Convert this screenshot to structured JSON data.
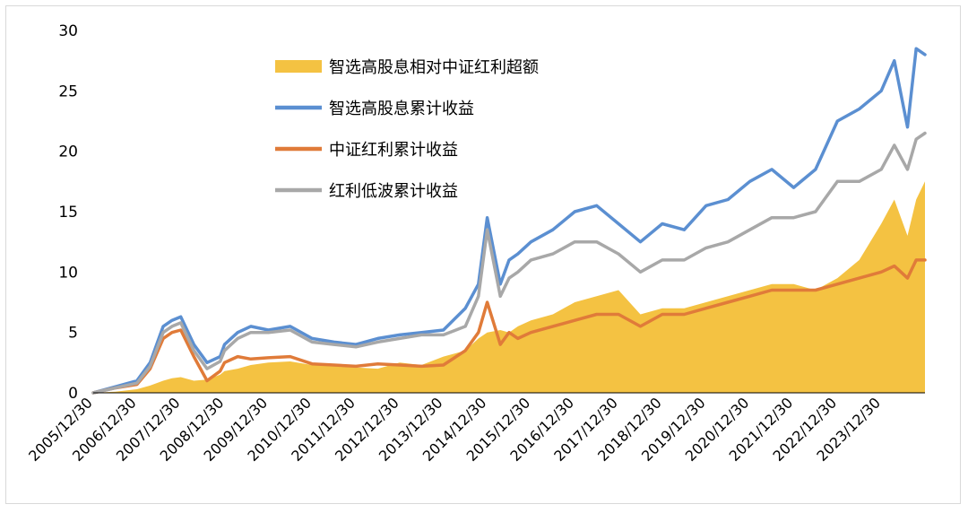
{
  "chart_data": {
    "type": "area",
    "title": "",
    "xlabel": "",
    "ylabel": "",
    "ylim": [
      0,
      30
    ],
    "yticks": [
      0,
      5,
      10,
      15,
      20,
      25,
      30
    ],
    "grid": false,
    "legend_position": "top-left",
    "x": [
      2006.0,
      2006.5,
      2007.0,
      2007.3,
      2007.6,
      2007.8,
      2008.0,
      2008.3,
      2008.6,
      2008.9,
      2009.0,
      2009.3,
      2009.6,
      2010.0,
      2010.5,
      2011.0,
      2011.5,
      2012.0,
      2012.5,
      2013.0,
      2013.5,
      2014.0,
      2014.5,
      2014.8,
      2015.0,
      2015.3,
      2015.5,
      2015.7,
      2016.0,
      2016.5,
      2017.0,
      2017.5,
      2018.0,
      2018.5,
      2019.0,
      2019.5,
      2020.0,
      2020.5,
      2021.0,
      2021.5,
      2022.0,
      2022.5,
      2023.0,
      2023.5,
      2024.0,
      2024.3,
      2024.6,
      2024.8,
      2025.0
    ],
    "xtick_labels": [
      "2005/12/30",
      "2006/12/30",
      "2007/12/30",
      "2008/12/30",
      "2009/12/30",
      "2010/12/30",
      "2011/12/30",
      "2012/12/30",
      "2013/12/30",
      "2014/12/30",
      "2015/12/30",
      "2016/12/30",
      "2017/12/30",
      "2018/12/30",
      "2019/12/30",
      "2020/12/30",
      "2021/12/30",
      "2022/12/30",
      "2023/12/30"
    ],
    "xtick_values": [
      2006,
      2007,
      2008,
      2009,
      2010,
      2011,
      2012,
      2013,
      2014,
      2015,
      2016,
      2017,
      2018,
      2019,
      2020,
      2021,
      2022,
      2023,
      2024
    ],
    "series": [
      {
        "name": "智选高股息相对中证红利超额",
        "kind": "area",
        "color": "#F4C242",
        "values": [
          0.0,
          0.1,
          0.3,
          0.6,
          1.0,
          1.2,
          1.3,
          1.0,
          1.1,
          1.5,
          1.8,
          2.0,
          2.3,
          2.5,
          2.6,
          2.3,
          2.2,
          2.1,
          2.0,
          2.5,
          2.3,
          3.0,
          3.5,
          4.5,
          5.0,
          5.2,
          5.0,
          5.5,
          6.0,
          6.5,
          7.5,
          8.0,
          8.5,
          6.5,
          7.0,
          7.0,
          7.5,
          8.0,
          8.5,
          9.0,
          9.0,
          8.5,
          9.5,
          11.0,
          14.0,
          16.0,
          13.0,
          16.0,
          17.5
        ]
      },
      {
        "name": "智选高股息累计收益",
        "kind": "line",
        "color": "#5B8FD1",
        "values": [
          0.0,
          0.5,
          1.0,
          2.5,
          5.5,
          6.0,
          6.3,
          4.0,
          2.5,
          3.0,
          4.0,
          5.0,
          5.5,
          5.2,
          5.5,
          4.5,
          4.2,
          4.0,
          4.5,
          4.8,
          5.0,
          5.2,
          7.0,
          9.0,
          14.5,
          9.0,
          11.0,
          11.5,
          12.5,
          13.5,
          15.0,
          15.5,
          14.0,
          12.5,
          14.0,
          13.5,
          15.5,
          16.0,
          17.5,
          18.5,
          17.0,
          18.5,
          22.5,
          23.5,
          25.0,
          27.5,
          22.0,
          28.5,
          28.0
        ]
      },
      {
        "name": "中证红利累计收益",
        "kind": "line",
        "color": "#E07B39",
        "values": [
          0.0,
          0.4,
          0.7,
          2.0,
          4.5,
          5.0,
          5.2,
          3.0,
          1.0,
          1.8,
          2.5,
          3.0,
          2.8,
          2.9,
          3.0,
          2.4,
          2.3,
          2.2,
          2.4,
          2.3,
          2.2,
          2.3,
          3.5,
          5.0,
          7.5,
          4.0,
          5.0,
          4.5,
          5.0,
          5.5,
          6.0,
          6.5,
          6.5,
          5.5,
          6.5,
          6.5,
          7.0,
          7.5,
          8.0,
          8.5,
          8.5,
          8.5,
          9.0,
          9.5,
          10.0,
          10.5,
          9.5,
          11.0,
          11.0
        ]
      },
      {
        "name": "红利低波累计收益",
        "kind": "line",
        "color": "#A8A8A8",
        "values": [
          0.0,
          0.4,
          0.8,
          2.2,
          5.0,
          5.5,
          5.8,
          3.5,
          2.0,
          2.6,
          3.5,
          4.5,
          5.0,
          5.0,
          5.2,
          4.2,
          4.0,
          3.8,
          4.2,
          4.5,
          4.8,
          4.8,
          5.5,
          8.0,
          13.5,
          8.0,
          9.5,
          10.0,
          11.0,
          11.5,
          12.5,
          12.5,
          11.5,
          10.0,
          11.0,
          11.0,
          12.0,
          12.5,
          13.5,
          14.5,
          14.5,
          15.0,
          17.5,
          17.5,
          18.5,
          20.5,
          18.5,
          21.0,
          21.5
        ]
      }
    ]
  }
}
